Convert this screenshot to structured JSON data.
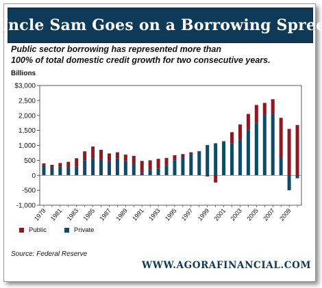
{
  "banner": {
    "title": "Uncle Sam Goes on a Borrowing Spree"
  },
  "subtitle": {
    "line1": "Public sector borrowing has represented more than",
    "line2": "100% of total domestic credit growth for two consecutive years."
  },
  "source": "Source:  Federal Reserve",
  "footer": {
    "url": "WWW.AGORAFINANCIAL.COM"
  },
  "colors": {
    "public": "#8b1a22",
    "private": "#114a66",
    "banner": "#0e3a57"
  },
  "chart_data": {
    "type": "bar",
    "stacked": true,
    "ylabel": "Billions",
    "ylim": [
      -1000,
      3000
    ],
    "yticks": [
      3000,
      2500,
      2000,
      1500,
      1000,
      500,
      0,
      -500,
      -1000
    ],
    "ytick_labels": [
      "$3,000",
      "2,500",
      "2,000",
      "1,500",
      "1,000",
      "500",
      "0",
      "-500",
      "-1,000"
    ],
    "grid": false,
    "legend": "bottom-left",
    "categories": [
      "1979",
      "1980",
      "1981",
      "1982",
      "1983",
      "1984",
      "1985",
      "1986",
      "1987",
      "1988",
      "1989",
      "1990",
      "1991",
      "1992",
      "1993",
      "1994",
      "1995",
      "1996",
      "1997",
      "1998",
      "1999",
      "2000",
      "2001",
      "2002",
      "2003",
      "2004",
      "2005",
      "2006",
      "2007",
      "2008",
      "2009",
      "2010"
    ],
    "xtick_labels": [
      "1979",
      "1981",
      "1983",
      "1985",
      "1987",
      "1989",
      "1991",
      "1993",
      "1995",
      "1997",
      "1999",
      "2001",
      "2003",
      "2005",
      "2007",
      "2009"
    ],
    "series": [
      {
        "name": "Public",
        "values": [
          60,
          80,
          110,
          180,
          270,
          300,
          400,
          320,
          260,
          200,
          220,
          280,
          400,
          320,
          320,
          250,
          170,
          110,
          70,
          20,
          -40,
          -240,
          20,
          380,
          520,
          530,
          590,
          390,
          490,
          1320,
          1550,
          1680
        ]
      },
      {
        "name": "Private",
        "values": [
          340,
          270,
          300,
          270,
          300,
          500,
          560,
          530,
          470,
          570,
          470,
          370,
          80,
          180,
          230,
          330,
          500,
          600,
          700,
          790,
          1010,
          1070,
          1120,
          1060,
          1180,
          1520,
          1760,
          2030,
          2050,
          600,
          -500,
          -100
        ]
      }
    ]
  }
}
